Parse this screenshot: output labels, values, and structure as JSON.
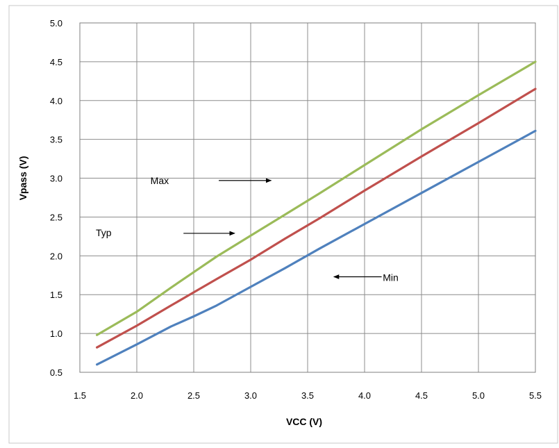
{
  "chart_data": {
    "type": "line",
    "xlabel": "VCC (V)",
    "ylabel": "Vpass (V)",
    "xlim": [
      1.5,
      5.5
    ],
    "ylim": [
      0.5,
      5.0
    ],
    "x_ticks": [
      "1.5",
      "2.0",
      "2.5",
      "3.0",
      "3.5",
      "4.0",
      "4.5",
      "5.0",
      "5.5"
    ],
    "y_ticks": [
      "0.5",
      "1.0",
      "1.5",
      "2.0",
      "2.5",
      "3.0",
      "3.5",
      "4.0",
      "4.5",
      "5.0"
    ],
    "grid": true,
    "series": [
      {
        "name": "Max",
        "color": "#9BBB59",
        "x": [
          1.65,
          2.0,
          2.3,
          2.5,
          2.7,
          3.0,
          3.3,
          3.6,
          4.0,
          4.5,
          5.0,
          5.5
        ],
        "y": [
          0.98,
          1.28,
          1.59,
          1.79,
          1.99,
          2.26,
          2.53,
          2.8,
          3.17,
          3.63,
          4.07,
          4.5
        ]
      },
      {
        "name": "Typ",
        "color": "#C0504D",
        "x": [
          1.65,
          2.0,
          2.3,
          2.5,
          2.7,
          3.0,
          3.3,
          3.6,
          4.0,
          4.5,
          5.0,
          5.5
        ],
        "y": [
          0.82,
          1.1,
          1.36,
          1.53,
          1.7,
          1.95,
          2.22,
          2.48,
          2.84,
          3.28,
          3.71,
          4.15
        ]
      },
      {
        "name": "Min",
        "color": "#4F81BD",
        "x": [
          1.65,
          2.0,
          2.3,
          2.5,
          2.7,
          3.0,
          3.3,
          3.6,
          4.0,
          4.5,
          5.0,
          5.5
        ],
        "y": [
          0.6,
          0.86,
          1.09,
          1.22,
          1.36,
          1.6,
          1.84,
          2.09,
          2.41,
          2.81,
          3.21,
          3.61
        ]
      }
    ],
    "annotations": [
      {
        "text": "Max",
        "text_at": [
          2.12,
          2.97
        ],
        "arrow_from": [
          2.72,
          2.97
        ],
        "arrow_to": [
          3.18,
          2.97
        ]
      },
      {
        "text": "Typ",
        "text_at": [
          1.64,
          2.3
        ],
        "arrow_from": [
          2.41,
          2.29
        ],
        "arrow_to": [
          2.86,
          2.29
        ]
      },
      {
        "text": "Min",
        "text_at": [
          4.16,
          1.72
        ],
        "arrow_from": [
          4.15,
          1.73
        ],
        "arrow_to": [
          3.73,
          1.73
        ]
      }
    ]
  }
}
